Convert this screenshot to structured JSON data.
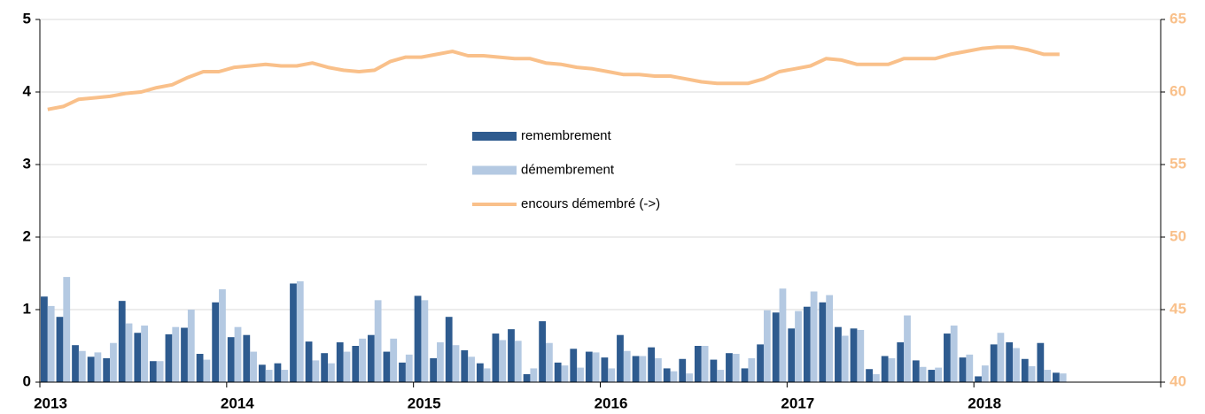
{
  "chart_data": {
    "type": "bar_line",
    "categories": [
      "2013",
      null,
      null,
      null,
      null,
      null,
      null,
      null,
      null,
      null,
      null,
      null,
      "2014",
      null,
      null,
      null,
      null,
      null,
      null,
      null,
      null,
      null,
      null,
      null,
      "2015",
      null,
      null,
      null,
      null,
      null,
      null,
      null,
      null,
      null,
      null,
      null,
      "2016",
      null,
      null,
      null,
      null,
      null,
      null,
      null,
      null,
      null,
      null,
      null,
      "2017",
      null,
      null,
      null,
      null,
      null,
      null,
      null,
      null,
      null,
      null,
      null,
      "2018",
      null,
      null,
      null,
      null,
      null,
      null,
      null,
      null,
      null,
      null,
      null
    ],
    "series": [
      {
        "name": "remembrement",
        "type": "bar",
        "color": "#2e5b8f",
        "values": [
          1.18,
          0.9,
          0.51,
          0.35,
          0.33,
          1.12,
          0.68,
          0.29,
          0.66,
          0.75,
          0.39,
          1.1,
          0.62,
          0.65,
          0.24,
          0.26,
          1.36,
          0.56,
          0.4,
          0.55,
          0.5,
          0.65,
          0.42,
          0.27,
          1.19,
          0.33,
          0.9,
          0.44,
          0.26,
          0.67,
          0.73,
          0.11,
          0.84,
          0.27,
          0.46,
          0.42,
          0.34,
          0.65,
          0.36,
          0.48,
          0.19,
          0.32,
          0.5,
          0.31,
          0.4,
          0.19,
          0.52,
          0.96,
          0.74,
          1.04,
          1.1,
          0.76,
          0.74,
          0.18,
          0.36,
          0.55,
          0.3,
          0.17,
          0.67,
          0.34,
          0.08,
          0.52,
          0.55,
          0.32,
          0.54,
          0.13,
          null,
          null,
          null,
          null,
          null,
          null
        ]
      },
      {
        "name": "démembrement",
        "type": "bar",
        "color": "#b4c9e2",
        "values": [
          1.05,
          1.45,
          0.43,
          0.41,
          0.54,
          0.81,
          0.78,
          0.29,
          0.76,
          1.0,
          0.31,
          1.28,
          0.76,
          0.42,
          0.17,
          0.17,
          1.39,
          0.3,
          0.26,
          0.42,
          0.6,
          1.13,
          0.6,
          0.38,
          1.13,
          0.55,
          0.51,
          0.35,
          0.19,
          0.58,
          0.57,
          0.19,
          0.54,
          0.23,
          0.2,
          0.41,
          0.19,
          0.43,
          0.36,
          0.33,
          0.15,
          0.12,
          0.5,
          0.17,
          0.39,
          0.33,
          0.99,
          1.29,
          0.98,
          1.25,
          1.2,
          0.64,
          0.72,
          0.11,
          0.33,
          0.92,
          0.21,
          0.2,
          0.78,
          0.38,
          0.23,
          0.68,
          0.47,
          0.22,
          0.17,
          0.12,
          null,
          null,
          null,
          null,
          null,
          null
        ]
      },
      {
        "name": "encours démembré (->)",
        "type": "line",
        "axis": "y2",
        "color": "#f9c08a",
        "values": [
          58.8,
          59.0,
          59.5,
          59.6,
          59.7,
          59.9,
          60.0,
          60.3,
          60.5,
          61.0,
          61.4,
          61.4,
          61.7,
          61.8,
          61.9,
          61.8,
          61.8,
          62.0,
          61.7,
          61.5,
          61.4,
          61.5,
          62.1,
          62.4,
          62.4,
          62.6,
          62.8,
          62.5,
          62.5,
          62.4,
          62.3,
          62.3,
          62.0,
          61.9,
          61.7,
          61.6,
          61.4,
          61.2,
          61.2,
          61.1,
          61.1,
          60.9,
          60.7,
          60.6,
          60.6,
          60.6,
          60.9,
          61.4,
          61.6,
          61.8,
          62.3,
          62.2,
          61.9,
          61.9,
          61.9,
          62.3,
          62.3,
          62.3,
          62.6,
          62.8,
          63.0,
          63.1,
          63.1,
          62.9,
          62.6,
          62.6,
          null,
          null,
          null,
          null,
          null,
          null
        ]
      }
    ],
    "ylim": [
      0,
      5
    ],
    "yticks": [
      0,
      1,
      2,
      3,
      4,
      5
    ],
    "y2lim": [
      40,
      65
    ],
    "y2ticks": [
      40,
      45,
      50,
      55,
      60,
      65
    ],
    "y2_color": "#f9c08a",
    "grid": true
  }
}
